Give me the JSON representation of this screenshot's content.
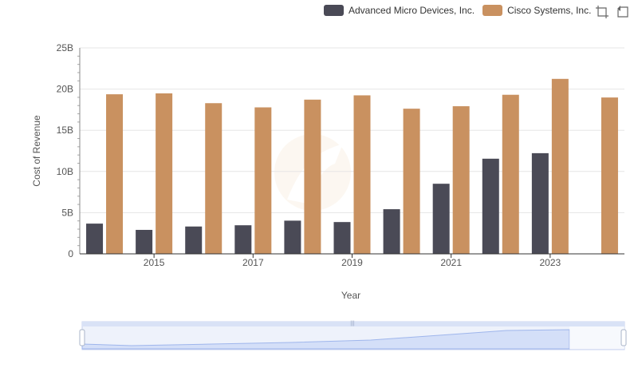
{
  "legend": {
    "items": [
      {
        "label": "Advanced Micro Devices, Inc.",
        "color": "#4a4a56"
      },
      {
        "label": "Cisco Systems, Inc.",
        "color": "#c99160"
      }
    ]
  },
  "toolbox": {
    "icons": [
      "zoom-icon",
      "restore-icon"
    ]
  },
  "chart_data": {
    "type": "bar",
    "categories": [
      "2014",
      "2015",
      "2016",
      "2017",
      "2018",
      "2019",
      "2020",
      "2021",
      "2022",
      "2023",
      "2024"
    ],
    "x_tick_labels": [
      "2015",
      "2017",
      "2019",
      "2021",
      "2023"
    ],
    "series": [
      {
        "name": "Advanced Micro Devices, Inc.",
        "color": "#4a4a56",
        "values": [
          3.67,
          2.91,
          3.32,
          3.47,
          4.03,
          3.86,
          5.42,
          8.51,
          11.55,
          12.22,
          null
        ]
      },
      {
        "name": "Cisco Systems, Inc.",
        "color": "#c99160",
        "values": [
          19.37,
          19.48,
          18.29,
          17.78,
          18.72,
          19.24,
          17.62,
          17.92,
          19.31,
          21.24,
          18.98
        ]
      }
    ],
    "y_tick_labels": [
      "0",
      "5B",
      "10B",
      "15B",
      "20B",
      "25B"
    ],
    "ylim": [
      0,
      25
    ],
    "ylabel": "Cost of Revenue",
    "xlabel": "Year",
    "grid": true,
    "legend_position": "top-right"
  }
}
